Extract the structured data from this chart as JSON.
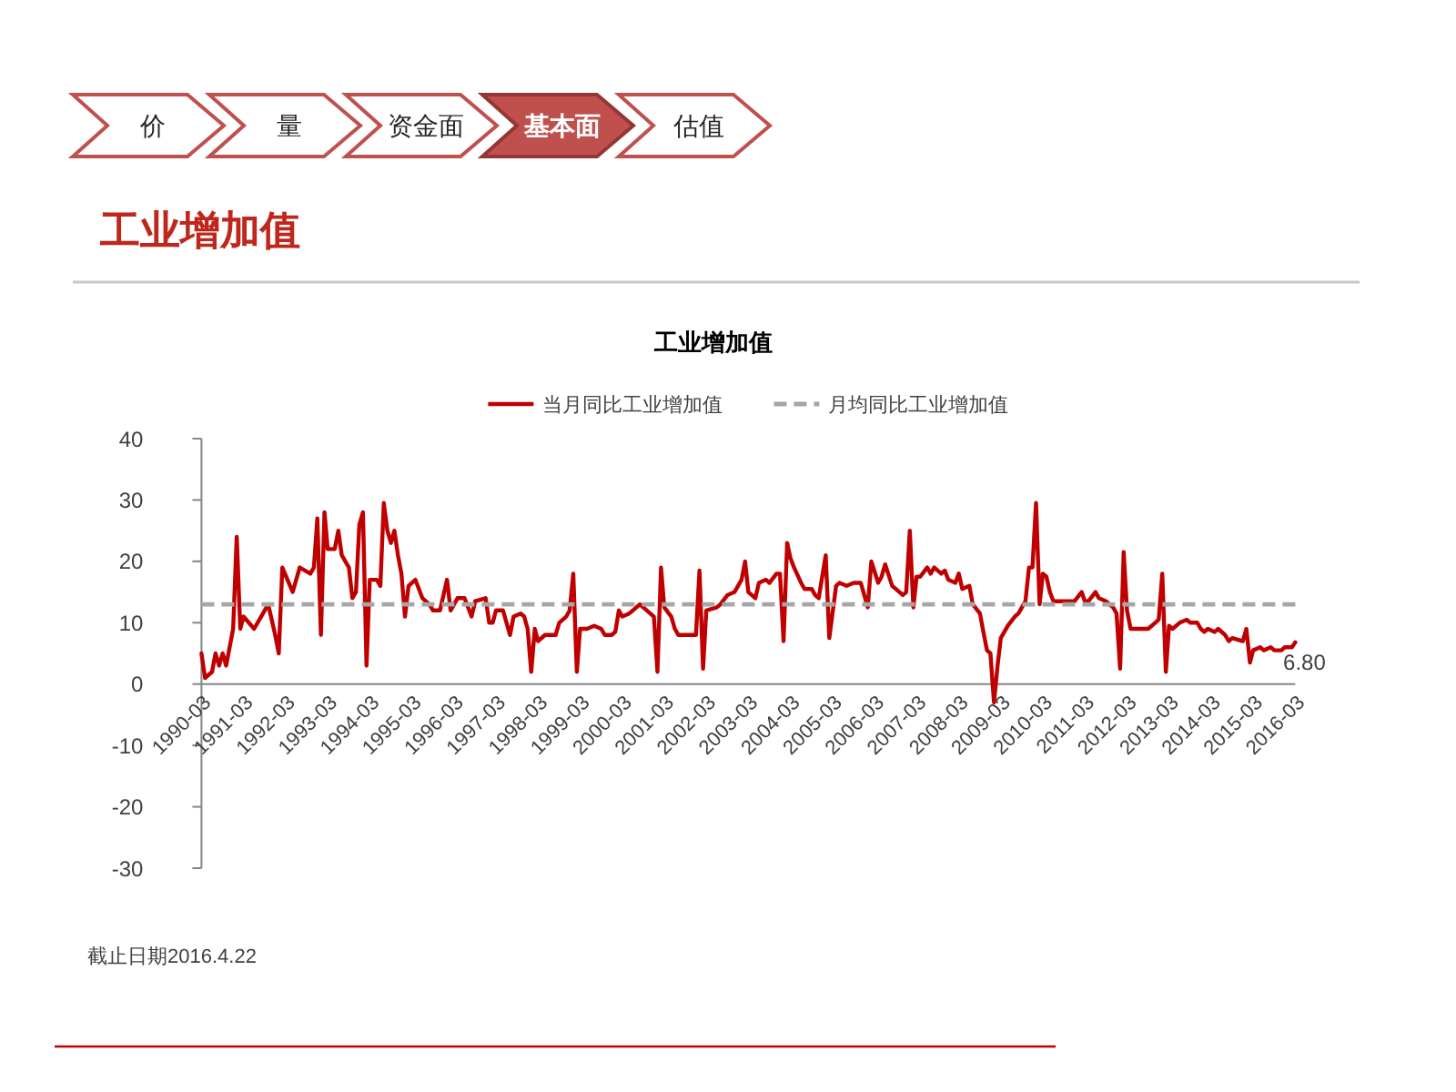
{
  "chart_data": [
    {
      "type": "other",
      "title": "工业增加值",
      "categories": [
        "价",
        "量",
        "资金面",
        "基本面",
        "估值"
      ],
      "colors": [
        "#ffffff",
        "#ffffff",
        "#ffffff",
        "#c0504d",
        "#ffffff"
      ]
    },
    {
      "type": "line",
      "title": "工业增加值",
      "legend": "top",
      "annotations": [
        "截止日期2016.4.22"
      ],
      "xlim": [
        "1990-03",
        "2016-03"
      ],
      "xticks": [
        "1990-03",
        "1991-03",
        "1992-03",
        "1993-03",
        "1994-03",
        "1995-03",
        "1996-03",
        "1997-03",
        "1998-03",
        "1999-03",
        "2000-03",
        "2001-03",
        "2002-03",
        "2003-03",
        "2004-03",
        "2005-03",
        "2006-03",
        "2007-03",
        "2008-03",
        "2009-03",
        "2010-03",
        "2011-03",
        "2012-03",
        "2013-03",
        "2014-03",
        "2015-03",
        "2016-03"
      ],
      "ylim": [
        -30,
        40
      ],
      "yticks": [
        -30,
        -20,
        -10,
        0,
        10,
        20,
        30,
        40
      ],
      "x": [
        "1990-03",
        "1990-04",
        "1990-06",
        "1990-07",
        "1990-08",
        "1990-09",
        "1990-10",
        "1990-12",
        "1991-01",
        "1991-02",
        "1991-03",
        "1991-06",
        "1991-08",
        "1991-10",
        "1991-12",
        "1992-01",
        "1992-02",
        "1992-05",
        "1992-07",
        "1992-10",
        "1992-11",
        "1992-12",
        "1993-01",
        "1993-02",
        "1993-03",
        "1993-05",
        "1993-06",
        "1993-07",
        "1993-09",
        "1993-10",
        "1993-11",
        "1993-12",
        "1994-01",
        "1994-02",
        "1994-03",
        "1994-05",
        "1994-06",
        "1994-07",
        "1994-08",
        "1994-09",
        "1994-10",
        "1994-11",
        "1994-12",
        "1995-01",
        "1995-02",
        "1995-04",
        "1995-06",
        "1995-08",
        "1995-09",
        "1995-11",
        "1996-01",
        "1996-02",
        "1996-04",
        "1996-06",
        "1996-08",
        "1996-09",
        "1996-12",
        "1997-01",
        "1997-02",
        "1997-03",
        "1997-05",
        "1997-07",
        "1997-08",
        "1997-10",
        "1997-11",
        "1997-12",
        "1998-01",
        "1998-02",
        "1998-03",
        "1998-05",
        "1998-08",
        "1998-09",
        "1998-11",
        "1998-12",
        "1999-01",
        "1999-02",
        "1999-03",
        "1999-05",
        "1999-07",
        "1999-09",
        "1999-10",
        "1999-12",
        "2000-01",
        "2000-02",
        "2000-03",
        "2000-05",
        "2000-06",
        "2000-08",
        "2000-10",
        "2000-12",
        "2001-01",
        "2001-02",
        "2001-03",
        "2001-05",
        "2001-06",
        "2001-07",
        "2001-09",
        "2001-12",
        "2002-01",
        "2002-02",
        "2002-03",
        "2002-06",
        "2002-07",
        "2002-09",
        "2002-11",
        "2003-01",
        "2003-02",
        "2003-03",
        "2003-05",
        "2003-06",
        "2003-08",
        "2003-09",
        "2003-11",
        "2003-12",
        "2004-01",
        "2004-02",
        "2004-03",
        "2004-04",
        "2004-06",
        "2004-07",
        "2004-09",
        "2004-10",
        "2004-11",
        "2005-01",
        "2005-02",
        "2005-04",
        "2005-05",
        "2005-07",
        "2005-09",
        "2005-11",
        "2006-01",
        "2006-02",
        "2006-04",
        "2006-05",
        "2006-06",
        "2006-08",
        "2006-09",
        "2006-11",
        "2006-12",
        "2007-01",
        "2007-02",
        "2007-03",
        "2007-04",
        "2007-06",
        "2007-07",
        "2007-08",
        "2007-10",
        "2007-11",
        "2007-12",
        "2008-02",
        "2008-03",
        "2008-04",
        "2008-06",
        "2008-07",
        "2008-09",
        "2008-10",
        "2008-11",
        "2008-12",
        "2009-01",
        "2009-02",
        "2009-03",
        "2009-04",
        "2009-05",
        "2009-07",
        "2009-08",
        "2009-10",
        "2009-11",
        "2009-12",
        "2010-01",
        "2010-02",
        "2010-03",
        "2010-04",
        "2010-05",
        "2010-06",
        "2010-08",
        "2010-12",
        "2011-02",
        "2011-03",
        "2011-04",
        "2011-06",
        "2011-07",
        "2011-09",
        "2011-10",
        "2011-11",
        "2011-12",
        "2012-01",
        "2012-02",
        "2012-03",
        "2012-04",
        "2012-07",
        "2012-09",
        "2012-11",
        "2012-12",
        "2013-01",
        "2013-02",
        "2013-03",
        "2013-04",
        "2013-06",
        "2013-08",
        "2013-09",
        "2013-11",
        "2013-12",
        "2014-01",
        "2014-02",
        "2014-04",
        "2014-05",
        "2014-07",
        "2014-08",
        "2014-09",
        "2014-12",
        "2015-01",
        "2015-02",
        "2015-03",
        "2015-05",
        "2015-06",
        "2015-08",
        "2015-09",
        "2015-11",
        "2015-12",
        "2016-02",
        "2016-03"
      ],
      "series": [
        {
          "name": "当月同比工业增加值",
          "type": "line",
          "color": "#c00000",
          "values": [
            5,
            1,
            2,
            5,
            3,
            5,
            3,
            9,
            24,
            9,
            11,
            9,
            11,
            13,
            8,
            5,
            19,
            15,
            19,
            18,
            19,
            27,
            8,
            28,
            22,
            22,
            25,
            21,
            19,
            14,
            15,
            26,
            28,
            3,
            17,
            17,
            16,
            29.5,
            25,
            23,
            25,
            21,
            18,
            11,
            16,
            17,
            14,
            13,
            12,
            12,
            17,
            12,
            14,
            14,
            11,
            13.5,
            14,
            10,
            10,
            12,
            12,
            8,
            11,
            11.5,
            11,
            9,
            2,
            9,
            7,
            8,
            8,
            10,
            11,
            12,
            18,
            2,
            9,
            9,
            9.5,
            9,
            8,
            8,
            8.5,
            12,
            11,
            11.5,
            12,
            13,
            12,
            11,
            2,
            19,
            12.5,
            11,
            9,
            8,
            8,
            8,
            18.5,
            2.5,
            12,
            12.5,
            13,
            14.5,
            15,
            17,
            20,
            15,
            14,
            16.5,
            17,
            16.5,
            18,
            18,
            7,
            23,
            20.5,
            19,
            16.5,
            15.5,
            15.5,
            14.5,
            14,
            21,
            7.5,
            16,
            16.5,
            16,
            16.5,
            16.5,
            12.5,
            20,
            16.5,
            17.5,
            19.5,
            16,
            15.5,
            14.5,
            15,
            25,
            12.5,
            17.5,
            17.5,
            19,
            18,
            19,
            18,
            18.5,
            17,
            16.5,
            18,
            15.5,
            16,
            13,
            11.5,
            8.5,
            5.5,
            5,
            -3,
            3,
            7.5,
            8.5,
            9.5,
            11,
            11.5,
            13.5,
            19,
            19,
            29.5,
            13,
            18,
            17.5,
            15,
            13.5,
            13.5,
            13.5,
            15,
            13.5,
            13.5,
            15,
            14,
            13.5,
            13,
            12.5,
            11.5,
            2.5,
            21.5,
            12,
            9,
            9,
            9,
            10,
            10.5,
            18,
            2,
            9.5,
            9,
            10,
            10.5,
            10,
            10,
            9,
            8.5,
            9,
            8.5,
            9,
            8,
            7,
            7.5,
            7,
            9,
            3.5,
            5.5,
            6,
            5.5,
            6,
            5.5,
            5.5,
            6,
            6,
            6.8
          ],
          "value_labels": [
            null,
            null,
            null,
            null,
            null,
            null,
            null,
            null,
            null,
            null,
            null,
            null,
            null,
            null,
            null,
            null,
            null,
            null,
            null,
            null,
            null,
            null,
            null,
            null,
            null,
            null,
            null,
            null,
            null,
            null,
            null,
            null,
            null,
            null,
            null,
            null,
            null,
            null,
            null,
            null,
            null,
            null,
            null,
            null,
            null,
            null,
            null,
            null,
            null,
            null,
            null,
            null,
            null,
            null,
            null,
            null,
            null,
            null,
            null,
            null,
            null,
            null,
            null,
            null,
            null,
            null,
            null,
            null,
            null,
            null,
            null,
            null,
            null,
            null,
            null,
            null,
            null,
            null,
            null,
            null,
            null,
            null,
            null,
            null,
            null,
            null,
            null,
            null,
            null,
            null,
            null,
            null,
            null,
            null,
            null,
            null,
            null,
            null,
            null,
            null,
            null,
            null,
            null,
            null,
            null,
            null,
            null,
            null,
            null,
            null,
            null,
            null,
            null,
            null,
            null,
            null,
            null,
            null,
            null,
            null,
            null,
            null,
            null,
            null,
            null,
            null,
            null,
            null,
            null,
            null,
            null,
            null,
            null,
            null,
            null,
            null,
            null,
            null,
            null,
            null,
            null,
            null,
            null,
            null,
            null,
            null,
            null,
            null,
            null,
            null,
            null,
            null,
            null,
            null,
            null,
            null,
            null,
            null,
            null,
            null,
            null,
            null,
            null,
            null,
            null,
            null,
            null,
            null,
            null,
            null,
            null,
            null,
            null,
            null,
            null,
            null,
            null,
            null,
            null,
            null,
            null,
            null,
            null,
            null,
            null,
            null,
            null,
            null,
            null,
            null,
            null,
            null,
            null,
            null,
            null,
            null,
            null,
            null,
            null,
            null,
            null,
            null,
            null,
            null,
            null,
            null,
            null,
            null,
            null,
            null,
            null,
            null,
            null,
            null,
            null,
            null,
            null,
            null,
            null,
            null,
            "6.80"
          ]
        },
        {
          "name": "月均同比工业增加值",
          "type": "line",
          "color": "#a6a6a6",
          "line_style": "dashed",
          "x": [
            "1990-03",
            "2016-03"
          ],
          "values": [
            13,
            13
          ]
        }
      ]
    }
  ]
}
